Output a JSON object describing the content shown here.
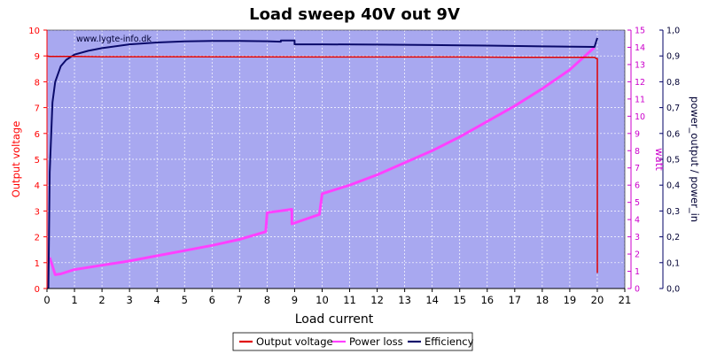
{
  "chart_data": {
    "type": "line",
    "title": "Load sweep 40V out 9V",
    "watermark": "www.lygte-info.dk",
    "xlabel": "Load current",
    "xlim": [
      0,
      21
    ],
    "x_ticks": [
      "0",
      "1",
      "2",
      "3",
      "4",
      "5",
      "6",
      "7",
      "8",
      "9",
      "10",
      "11",
      "12",
      "13",
      "14",
      "15",
      "16",
      "17",
      "18",
      "19",
      "20",
      "21"
    ],
    "y_left": {
      "label": "Output voltage",
      "color": "#ff0000",
      "lim": [
        0,
        10
      ],
      "ticks": [
        "0",
        "1",
        "2",
        "3",
        "4",
        "5",
        "6",
        "7",
        "8",
        "9",
        "10"
      ]
    },
    "y_right1": {
      "label": "watt",
      "color": "#cc00cc",
      "lim": [
        0,
        15
      ],
      "ticks": [
        "0",
        "1",
        "2",
        "3",
        "4",
        "5",
        "6",
        "7",
        "8",
        "9",
        "10",
        "11",
        "12",
        "13",
        "14",
        "15"
      ]
    },
    "y_right2": {
      "label": "power_output / power_in",
      "color": "#000066",
      "lim": [
        0,
        1
      ],
      "ticks": [
        "0,0",
        "0,1",
        "0,2",
        "0,3",
        "0,4",
        "0,5",
        "0,6",
        "0,7",
        "0,8",
        "0,9",
        "1,0"
      ]
    },
    "grid": true,
    "legend_position": "bottom-center",
    "plot_background": "#a8a8f0",
    "series": [
      {
        "name": "Output voltage",
        "axis": "left",
        "color": "#e00000",
        "x": [
          0.0,
          0.1,
          0.5,
          1,
          2,
          5,
          10,
          15,
          17,
          19.9,
          19.96,
          20.0,
          20.0
        ],
        "y": [
          9.0,
          8.98,
          8.98,
          8.98,
          8.97,
          8.97,
          8.96,
          8.96,
          8.95,
          8.95,
          8.9,
          8.9,
          0.6
        ]
      },
      {
        "name": "Power loss",
        "axis": "right1",
        "color": "#ff40ff",
        "x": [
          0.1,
          0.2,
          0.3,
          0.5,
          1,
          2,
          3,
          4,
          5,
          6,
          7,
          7.95,
          8.0,
          8.9,
          8.9,
          9.9,
          10.0,
          11,
          12,
          13,
          14,
          15,
          16,
          17,
          18,
          19,
          19.9
        ],
        "y": [
          1.8,
          1.3,
          0.8,
          0.85,
          1.1,
          1.35,
          1.6,
          1.9,
          2.2,
          2.5,
          2.85,
          3.3,
          4.4,
          4.6,
          3.75,
          4.3,
          5.5,
          6.0,
          6.6,
          7.3,
          8.0,
          8.8,
          9.7,
          10.6,
          11.6,
          12.7,
          14.0
        ]
      },
      {
        "name": "Efficiency",
        "axis": "right2",
        "color": "#0a0a6a",
        "x": [
          0.05,
          0.1,
          0.2,
          0.3,
          0.5,
          0.7,
          1,
          1.5,
          2,
          3,
          4,
          5,
          6,
          7,
          8,
          8.5,
          8.5,
          9.0,
          9.0,
          10,
          12,
          14,
          16,
          18,
          19.9,
          20.0
        ],
        "y": [
          0.0,
          0.45,
          0.72,
          0.8,
          0.86,
          0.885,
          0.905,
          0.92,
          0.93,
          0.945,
          0.952,
          0.956,
          0.958,
          0.958,
          0.957,
          0.955,
          0.96,
          0.96,
          0.945,
          0.945,
          0.944,
          0.942,
          0.94,
          0.937,
          0.935,
          0.97
        ]
      }
    ]
  }
}
